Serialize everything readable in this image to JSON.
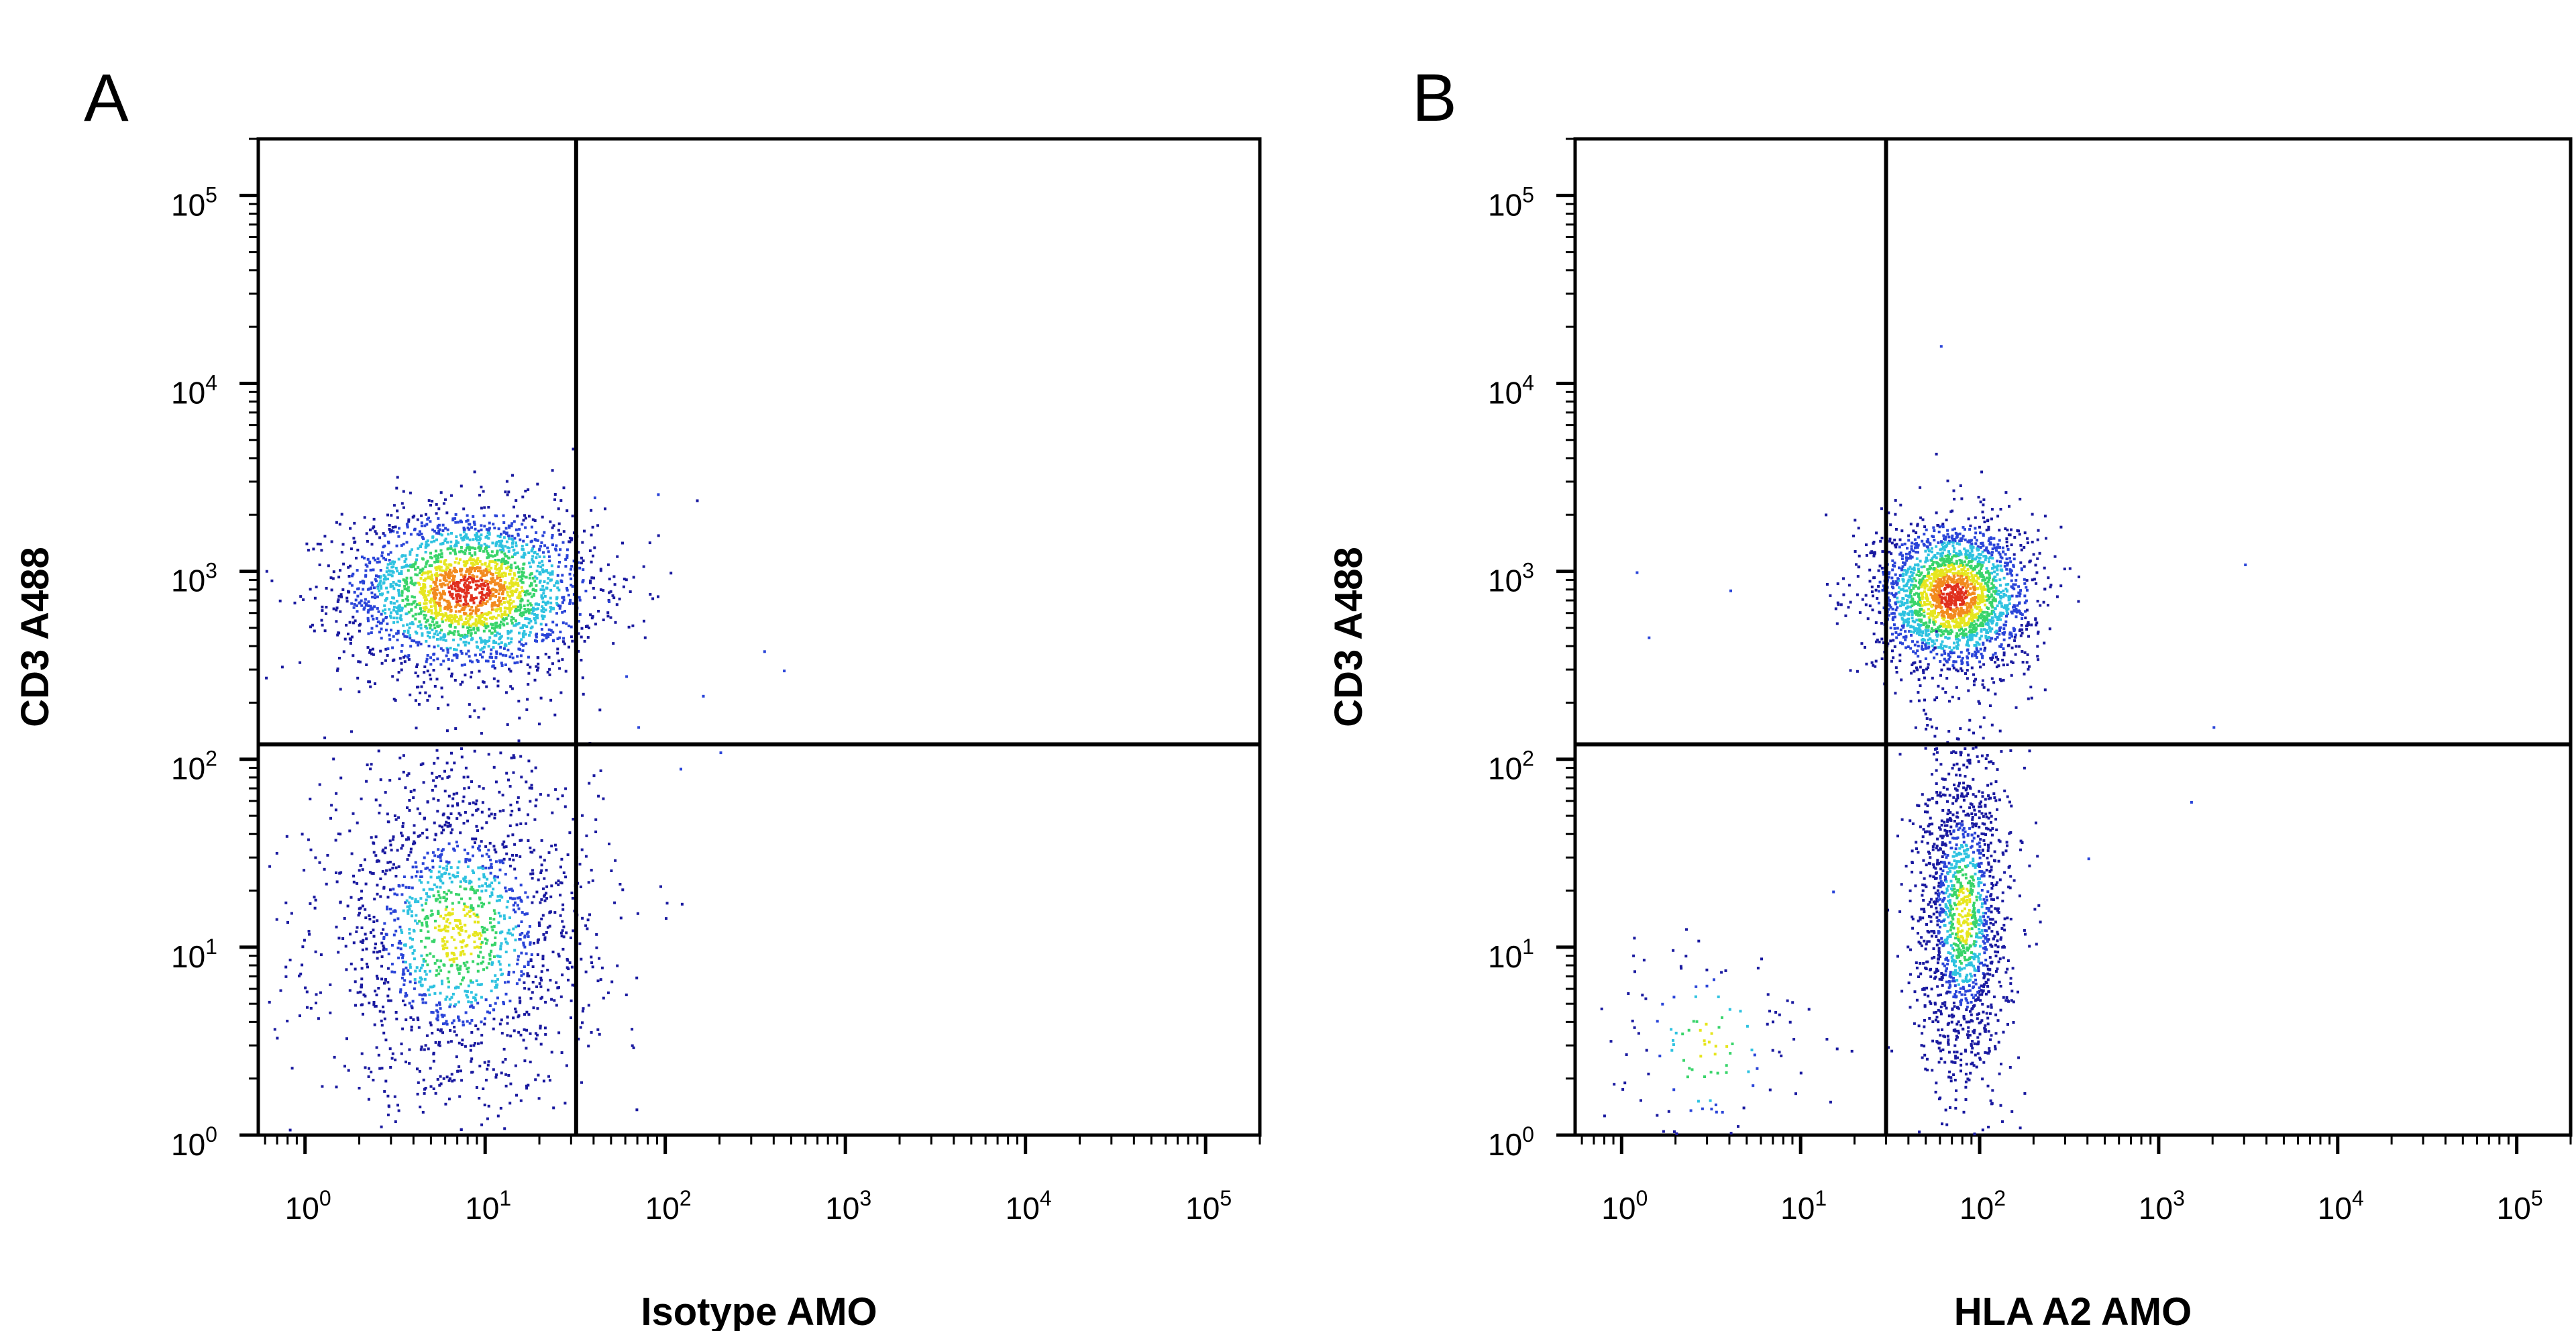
{
  "chart_data": [
    {
      "type": "scatter",
      "panel_label": "A",
      "xlabel": "Isotype AMO",
      "ylabel": "CD3 A488",
      "x_scale": "log",
      "y_scale": "log",
      "xlim": [
        0.55,
        200000
      ],
      "ylim": [
        1,
        200000
      ],
      "x_ticks": [
        {
          "base": "10",
          "exp": "0",
          "value": 1
        },
        {
          "base": "10",
          "exp": "1",
          "value": 10
        },
        {
          "base": "10",
          "exp": "2",
          "value": 100
        },
        {
          "base": "10",
          "exp": "3",
          "value": 1000
        },
        {
          "base": "10",
          "exp": "4",
          "value": 10000
        },
        {
          "base": "10",
          "exp": "5",
          "value": 100000
        }
      ],
      "y_ticks": [
        {
          "base": "10",
          "exp": "0",
          "value": 1
        },
        {
          "base": "10",
          "exp": "1",
          "value": 10
        },
        {
          "base": "10",
          "exp": "2",
          "value": 100
        },
        {
          "base": "10",
          "exp": "3",
          "value": 1000
        },
        {
          "base": "10",
          "exp": "4",
          "value": 10000
        },
        {
          "base": "10",
          "exp": "5",
          "value": 100000
        }
      ],
      "quadrant_gates": {
        "x": 32,
        "y": 120
      },
      "populations": [
        {
          "name": "",
          "center": [
            8,
            800
          ],
          "spread_log": [
            0.35,
            0.22
          ],
          "count": 2400
        },
        {
          "name": "",
          "center": [
            7,
            12
          ],
          "spread_log": [
            0.38,
            0.45
          ],
          "count": 1700
        }
      ],
      "sparse_events": [
        [
          40,
          2500
        ],
        [
          90,
          2600
        ],
        [
          160,
          220
        ],
        [
          350,
          380
        ],
        [
          450,
          300
        ],
        [
          70,
          150
        ],
        [
          120,
          90
        ],
        [
          200,
          110
        ],
        [
          48,
          700
        ],
        [
          60,
          280
        ]
      ],
      "density_colormap": [
        "#1a1aa0",
        "#2a44d8",
        "#2ec2e0",
        "#38d46a",
        "#e6e61e",
        "#f28a1e",
        "#e0301e"
      ]
    },
    {
      "type": "scatter",
      "panel_label": "B",
      "xlabel": "HLA A2 AMO",
      "ylabel": "CD3 A488",
      "x_scale": "log",
      "y_scale": "log",
      "xlim": [
        0.55,
        200000
      ],
      "ylim": [
        1,
        200000
      ],
      "x_ticks": [
        {
          "base": "10",
          "exp": "0",
          "value": 1
        },
        {
          "base": "10",
          "exp": "1",
          "value": 10
        },
        {
          "base": "10",
          "exp": "2",
          "value": 100
        },
        {
          "base": "10",
          "exp": "3",
          "value": 1000
        },
        {
          "base": "10",
          "exp": "4",
          "value": 10000
        },
        {
          "base": "10",
          "exp": "5",
          "value": 100000
        }
      ],
      "y_ticks": [
        {
          "base": "10",
          "exp": "0",
          "value": 1
        },
        {
          "base": "10",
          "exp": "1",
          "value": 10
        },
        {
          "base": "10",
          "exp": "2",
          "value": 100
        },
        {
          "base": "10",
          "exp": "3",
          "value": 1000
        },
        {
          "base": "10",
          "exp": "4",
          "value": 10000
        },
        {
          "base": "10",
          "exp": "5",
          "value": 100000
        }
      ],
      "quadrant_gates": {
        "x": 30,
        "y": 120
      },
      "populations": [
        {
          "name": "",
          "center": [
            70,
            750
          ],
          "spread_log": [
            0.22,
            0.2
          ],
          "count": 2200
        },
        {
          "name": "",
          "center": [
            80,
            15
          ],
          "spread_log": [
            0.13,
            0.45
          ],
          "count": 1500
        },
        {
          "name": "",
          "center": [
            3,
            3
          ],
          "spread_log": [
            0.3,
            0.35
          ],
          "count": 130
        }
      ],
      "sparse_events": [
        [
          1.2,
          1000
        ],
        [
          1.4,
          450
        ],
        [
          4,
          800
        ],
        [
          3000,
          1100
        ],
        [
          60,
          16000
        ],
        [
          2000,
          150
        ],
        [
          1500,
          60
        ],
        [
          400,
          30
        ],
        [
          15,
          20
        ]
      ],
      "density_colormap": [
        "#1a1aa0",
        "#2a44d8",
        "#2ec2e0",
        "#38d46a",
        "#e6e61e",
        "#f28a1e",
        "#e0301e"
      ]
    }
  ]
}
